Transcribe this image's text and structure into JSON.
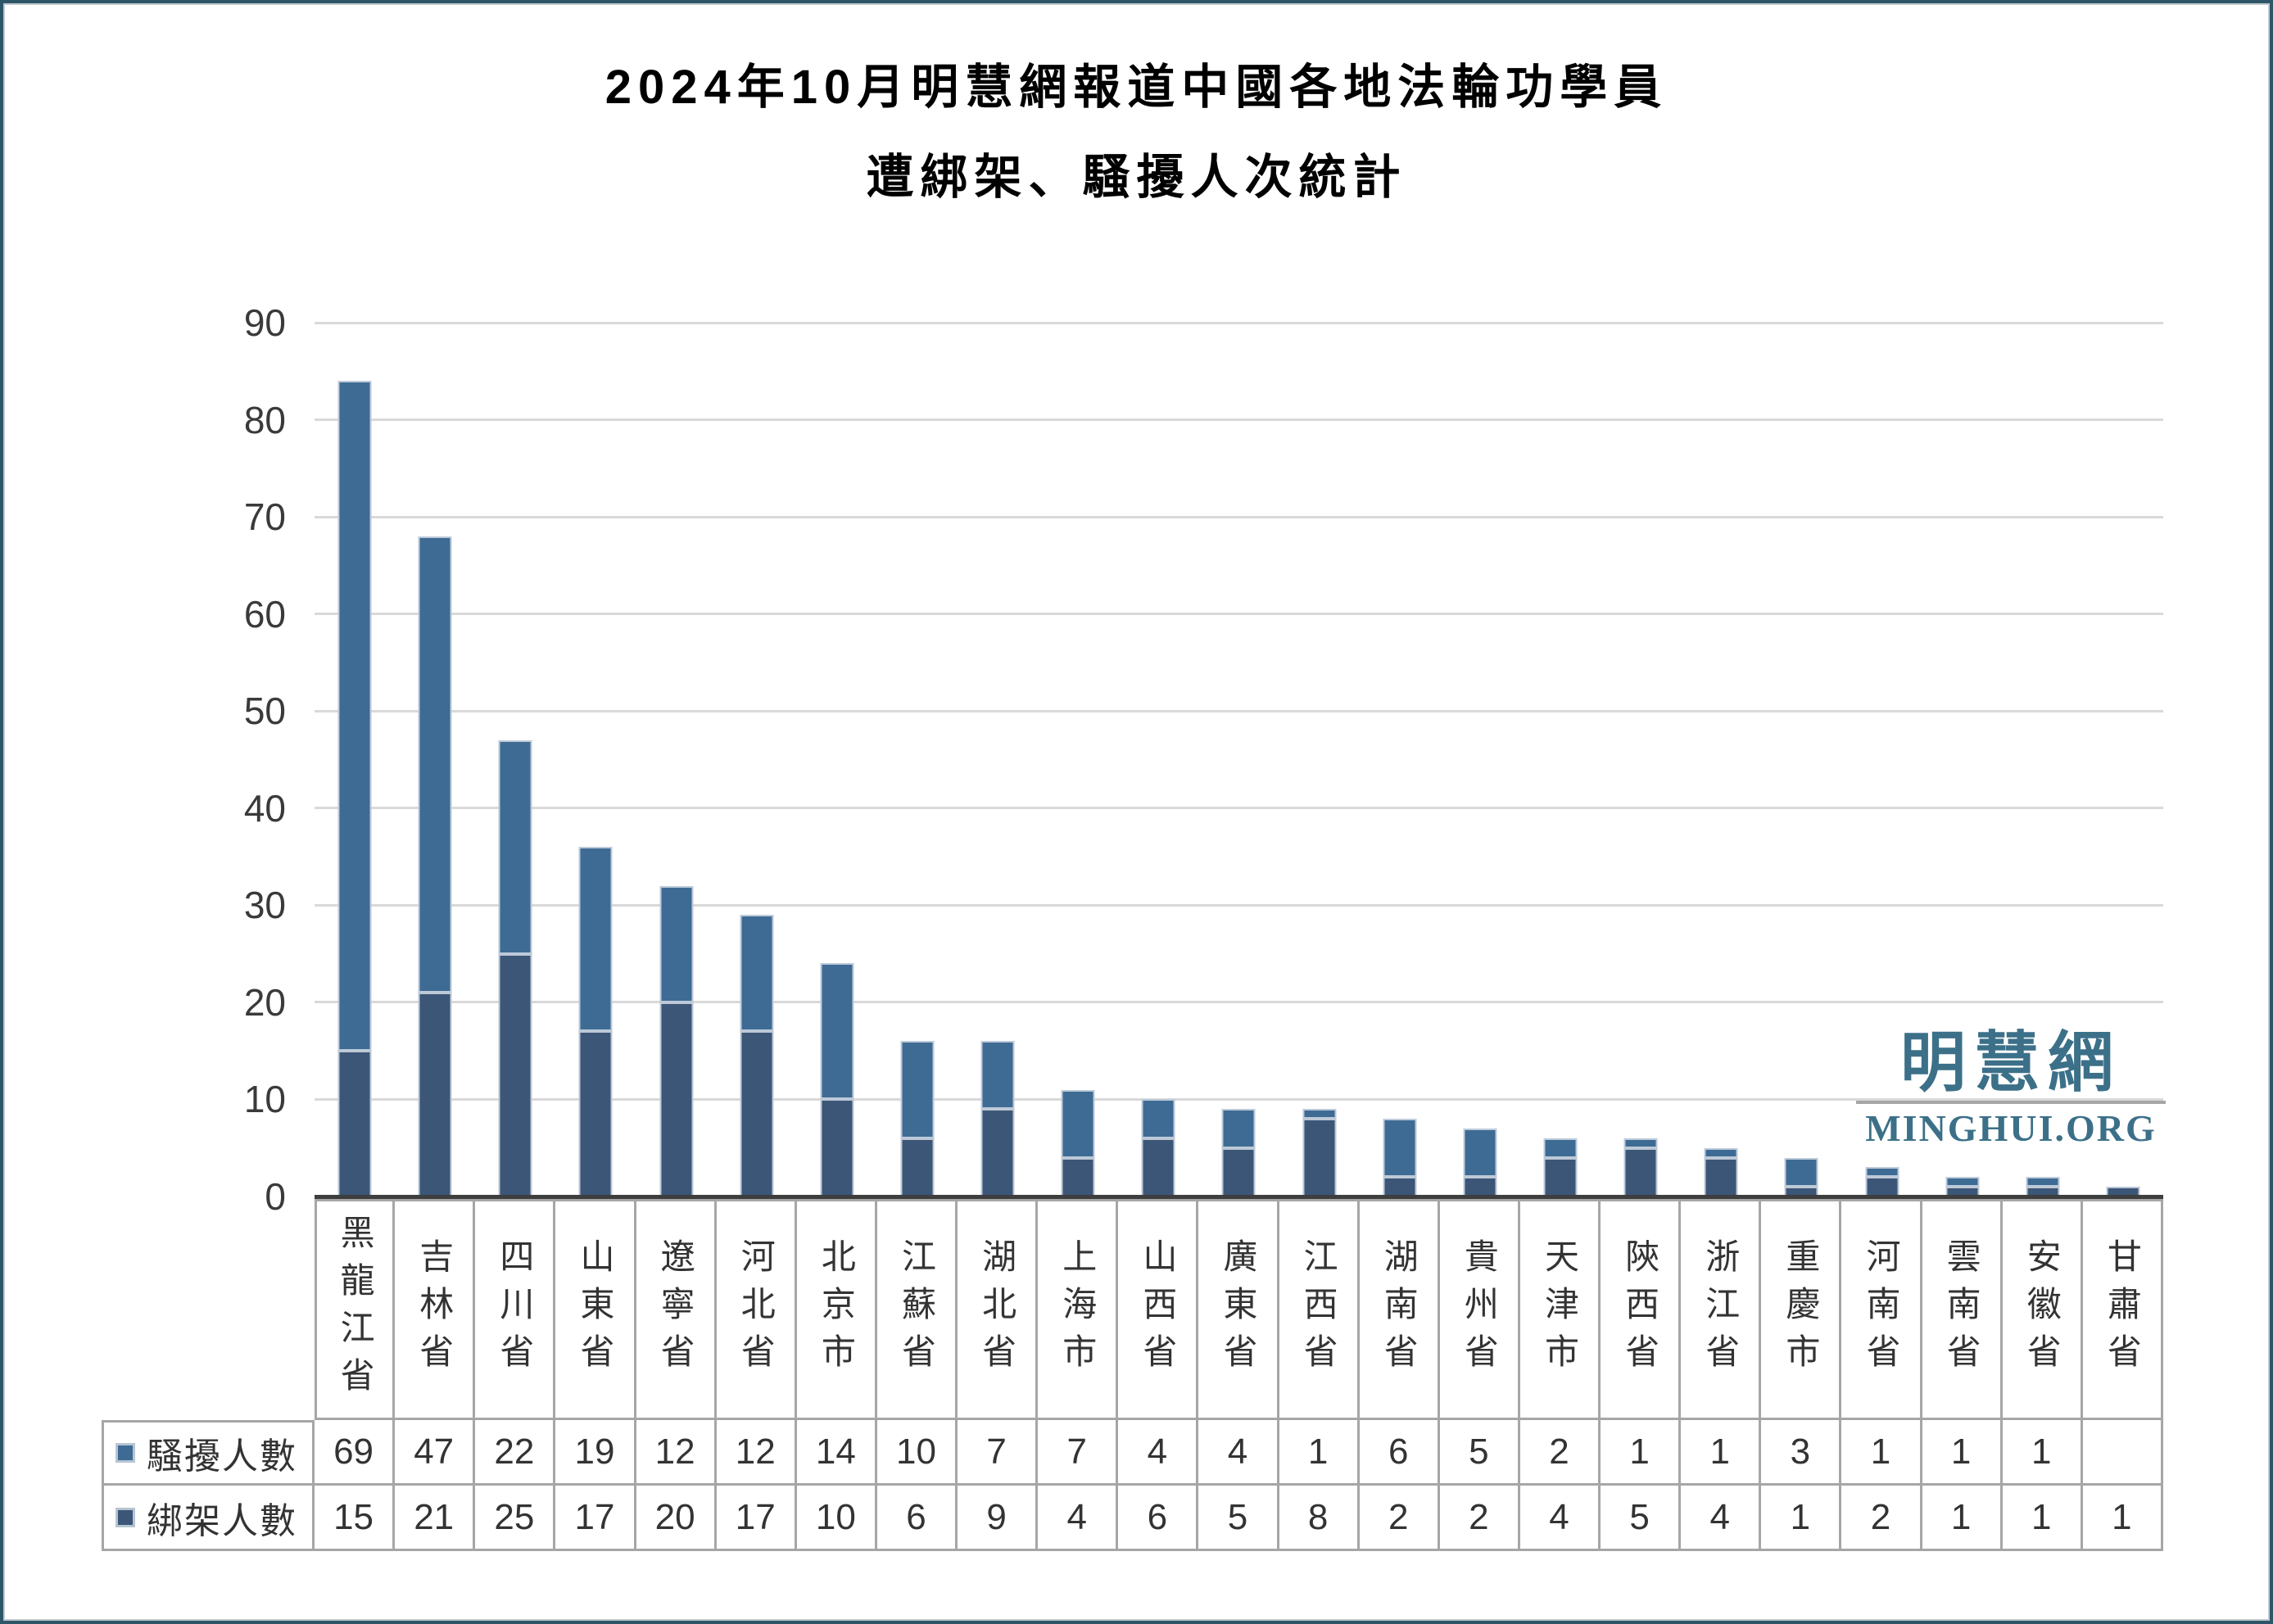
{
  "title": {
    "line1": "2024年10月明慧網報道中國各地法輪功學員",
    "line2": "遭綁架、騷擾人次統計"
  },
  "watermark": {
    "cjk": "明慧網",
    "latin": "MINGHUI.ORG",
    "color": "#3C7089"
  },
  "chart_data": {
    "type": "bar",
    "stacked": true,
    "title": "2024年10月明慧網報道中國各地法輪功學員遭綁架、騷擾人次統計",
    "categories": [
      "黑龍江省",
      "吉林省",
      "四川省",
      "山東省",
      "遼寧省",
      "河北省",
      "北京市",
      "江蘇省",
      "湖北省",
      "上海市",
      "山西省",
      "廣東省",
      "江西省",
      "湖南省",
      "貴州省",
      "天津市",
      "陝西省",
      "浙江省",
      "重慶市",
      "河南省",
      "雲南省",
      "安徽省",
      "甘肅省"
    ],
    "series": [
      {
        "key": "harassment",
        "name": "騷擾人數",
        "color": "#3E6B94",
        "stack": "top",
        "values": [
          69,
          47,
          22,
          19,
          12,
          12,
          14,
          10,
          7,
          7,
          4,
          4,
          1,
          6,
          5,
          2,
          1,
          1,
          3,
          1,
          1,
          1,
          null
        ]
      },
      {
        "key": "kidnapping",
        "name": "綁架人數",
        "color": "#3C5677",
        "stack": "bottom",
        "values": [
          15,
          21,
          25,
          17,
          20,
          17,
          10,
          6,
          9,
          4,
          6,
          5,
          8,
          2,
          2,
          4,
          5,
          4,
          1,
          2,
          1,
          1,
          1
        ]
      }
    ],
    "ylim": [
      0,
      90
    ],
    "yticks": [
      0,
      10,
      20,
      30,
      40,
      50,
      60,
      70,
      80,
      90
    ],
    "grid": true,
    "gridline_color": "#D9D9D9",
    "axis_color": "#3E3E3E",
    "legend_position": "table-left"
  }
}
